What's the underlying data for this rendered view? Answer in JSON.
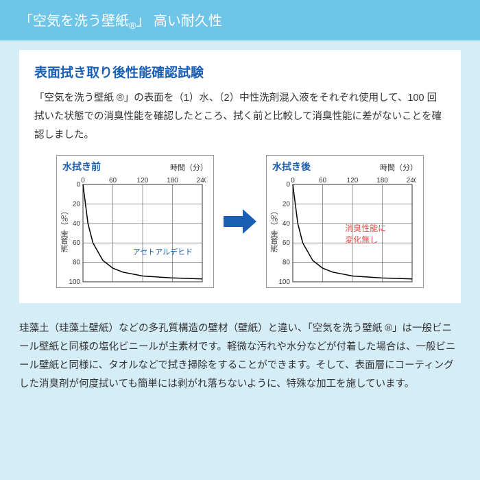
{
  "header": {
    "title_pre": "「空気を洗う壁紙",
    "title_reg": "®",
    "title_post": "」 高い耐久性"
  },
  "card": {
    "subtitle": "表面拭き取り後性能確認試験",
    "intro": "「空気を洗う壁紙 ®」の表面を（1）水、（2）中性洗剤混入液をそれぞれ使用して、100 回拭いた状態での消臭性能を確認したところ、拭く前と比較して消臭性能に差がないことを確認しました。"
  },
  "chart_before": {
    "type": "line",
    "title": "水拭き前",
    "x_axis_label": "時間（分）",
    "y_axis_label": "消臭率（％）",
    "xlim": [
      0,
      240
    ],
    "xticks": [
      0,
      60,
      120,
      180,
      240
    ],
    "ylim": [
      0,
      100
    ],
    "yticks": [
      0,
      20,
      40,
      60,
      80,
      100
    ],
    "curve_points": [
      [
        0,
        0
      ],
      [
        10,
        40
      ],
      [
        20,
        60
      ],
      [
        40,
        78
      ],
      [
        60,
        86
      ],
      [
        80,
        90
      ],
      [
        120,
        94
      ],
      [
        180,
        96
      ],
      [
        240,
        97
      ]
    ],
    "curve_color": "#000000",
    "curve_width": 1.5,
    "grid_color": "#333333",
    "grid_width": 0.5,
    "annotation": "アセトアルデヒド",
    "annotation_color": "#1a5fb4",
    "axis_font_size": 10
  },
  "chart_after": {
    "type": "line",
    "title": "水拭き後",
    "x_axis_label": "時間（分）",
    "y_axis_label": "消臭率（％）",
    "xlim": [
      0,
      240
    ],
    "xticks": [
      0,
      60,
      120,
      180,
      240
    ],
    "ylim": [
      0,
      100
    ],
    "yticks": [
      0,
      20,
      40,
      60,
      80,
      100
    ],
    "curve_points": [
      [
        0,
        0
      ],
      [
        10,
        40
      ],
      [
        20,
        60
      ],
      [
        40,
        78
      ],
      [
        60,
        86
      ],
      [
        80,
        90
      ],
      [
        120,
        94
      ],
      [
        180,
        96
      ],
      [
        240,
        97
      ]
    ],
    "curve_color": "#000000",
    "curve_width": 1.5,
    "grid_color": "#333333",
    "grid_width": 0.5,
    "annotation_line1": "消臭性能に",
    "annotation_line2": "変化無し",
    "annotation_color": "#e64545",
    "axis_font_size": 10
  },
  "footer": {
    "text": "珪藻土（珪藻土壁紙）などの多孔質構造の壁材（壁紙）と違い、「空気を洗う壁紙 ®」は一般ビニール壁紙と同様の塩化ビニールが主素材です。軽微な汚れや水分などが付着した場合は、一般ビニール壁紙と同様に、タオルなどで拭き掃除をすることができます。そして、表面層にコーティングした消臭剤が何度拭いても簡単には剥がれ落ちないように、特殊な加工を施しています。"
  }
}
